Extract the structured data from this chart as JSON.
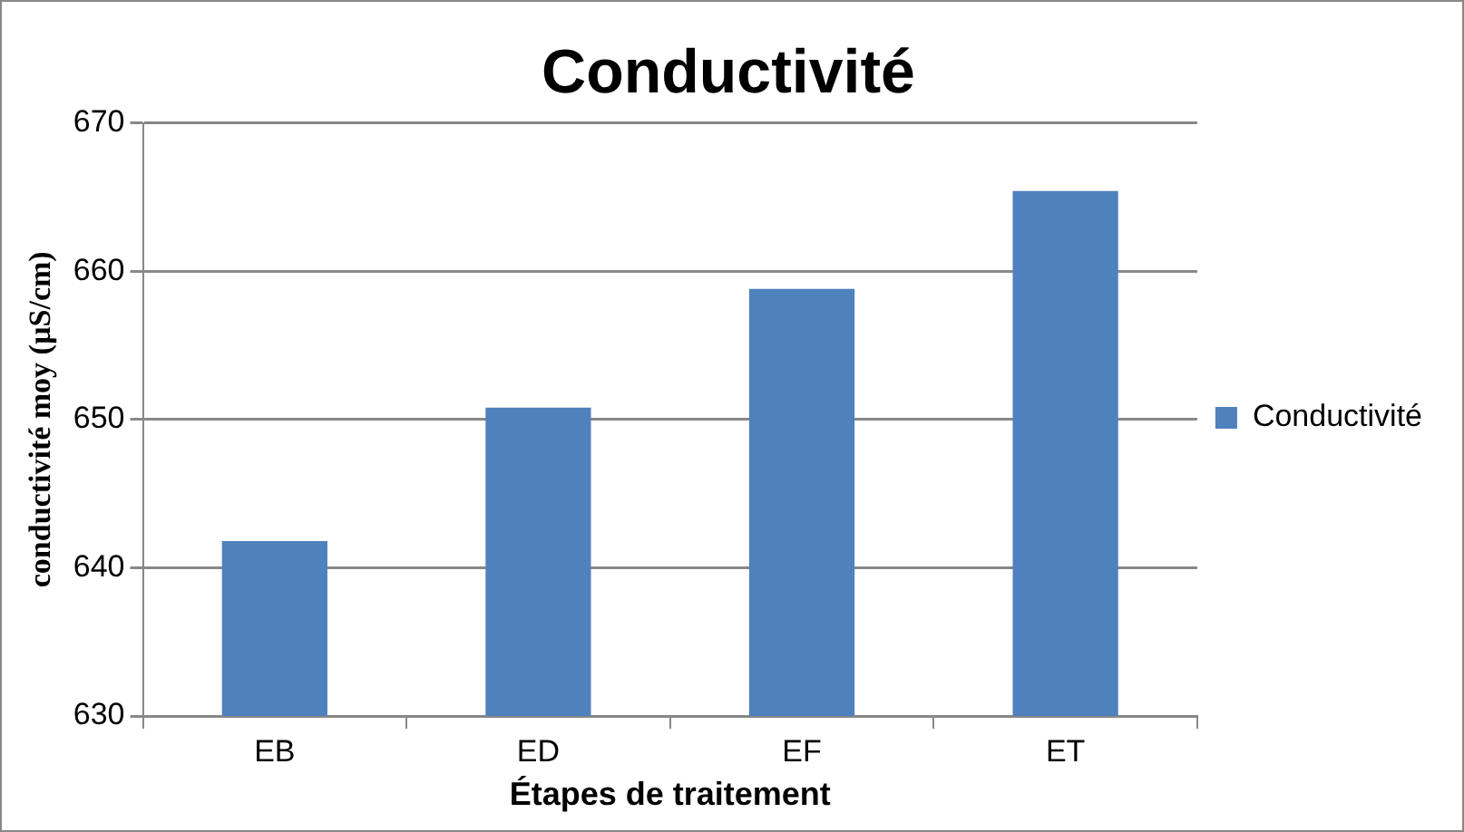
{
  "chart_data": {
    "type": "bar",
    "title": "Conductivité",
    "xlabel": "Étapes de traitement",
    "ylabel": "conductivité moy (µS/cm)",
    "categories": [
      "EB",
      "ED",
      "EF",
      "ET"
    ],
    "series": [
      {
        "name": "Conductivité",
        "color": "#4f81bd",
        "values": [
          641.8,
          650.8,
          658.8,
          665.4
        ]
      }
    ],
    "ylim": [
      630,
      670
    ],
    "yticks": [
      630,
      640,
      650,
      660,
      670
    ],
    "grid": "y",
    "legend": "right"
  }
}
